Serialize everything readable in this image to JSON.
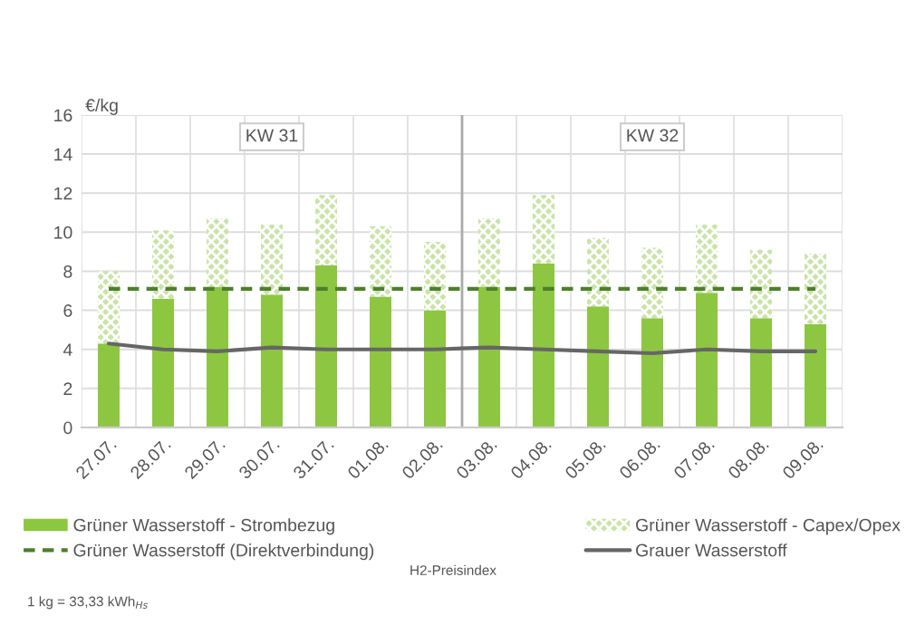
{
  "chart_data": {
    "type": "bar",
    "stacked": true,
    "ylabel": "€/kg",
    "categories": [
      "27.07.",
      "28.07.",
      "29.07.",
      "30.07.",
      "31.07.",
      "01.08.",
      "02.08.",
      "03.08.",
      "04.08.",
      "05.08.",
      "06.08.",
      "07.08.",
      "08.08.",
      "09.08."
    ],
    "series": [
      {
        "name": "Grüner Wasserstoff - Strombezug",
        "color": "#8dc641",
        "values": [
          4.3,
          6.6,
          7.2,
          6.8,
          8.3,
          6.7,
          6.0,
          7.2,
          8.4,
          6.2,
          5.6,
          6.9,
          5.6,
          5.3
        ]
      },
      {
        "name": "Grüner Wasserstoff - Capex/Opex",
        "color": "#c9e4a6",
        "values": [
          3.7,
          3.5,
          3.5,
          3.6,
          3.6,
          3.6,
          3.5,
          3.5,
          3.5,
          3.5,
          3.6,
          3.5,
          3.5,
          3.6
        ]
      },
      {
        "name": "Grüner Wasserstoff (Direktverbindung)",
        "type": "line",
        "line_style": "dashed",
        "color": "#4e7f2c",
        "values": [
          7.1,
          7.1,
          7.1,
          7.1,
          7.1,
          7.1,
          7.1,
          7.1,
          7.1,
          7.1,
          7.1,
          7.1,
          7.1,
          7.1
        ]
      },
      {
        "name": "Grauer Wasserstoff",
        "type": "line",
        "line_style": "solid",
        "color": "#666666",
        "values": [
          4.3,
          4.0,
          3.9,
          4.1,
          4.0,
          4.0,
          4.0,
          4.1,
          4.0,
          3.9,
          3.8,
          4.0,
          3.9,
          3.9
        ]
      }
    ],
    "ylim": [
      0,
      16
    ],
    "yticks": [
      0,
      2,
      4,
      6,
      8,
      10,
      12,
      14,
      16
    ],
    "grid": true,
    "legend": "bottom",
    "ref_lines": [
      {
        "axis": "x",
        "value": "03.08.",
        "color": "#aaaaaa"
      }
    ],
    "annotations": [
      "KW 31",
      "KW 32",
      "H2-Preisindex",
      "1 kg = 33,33 kWh$_{Hs}$"
    ]
  }
}
